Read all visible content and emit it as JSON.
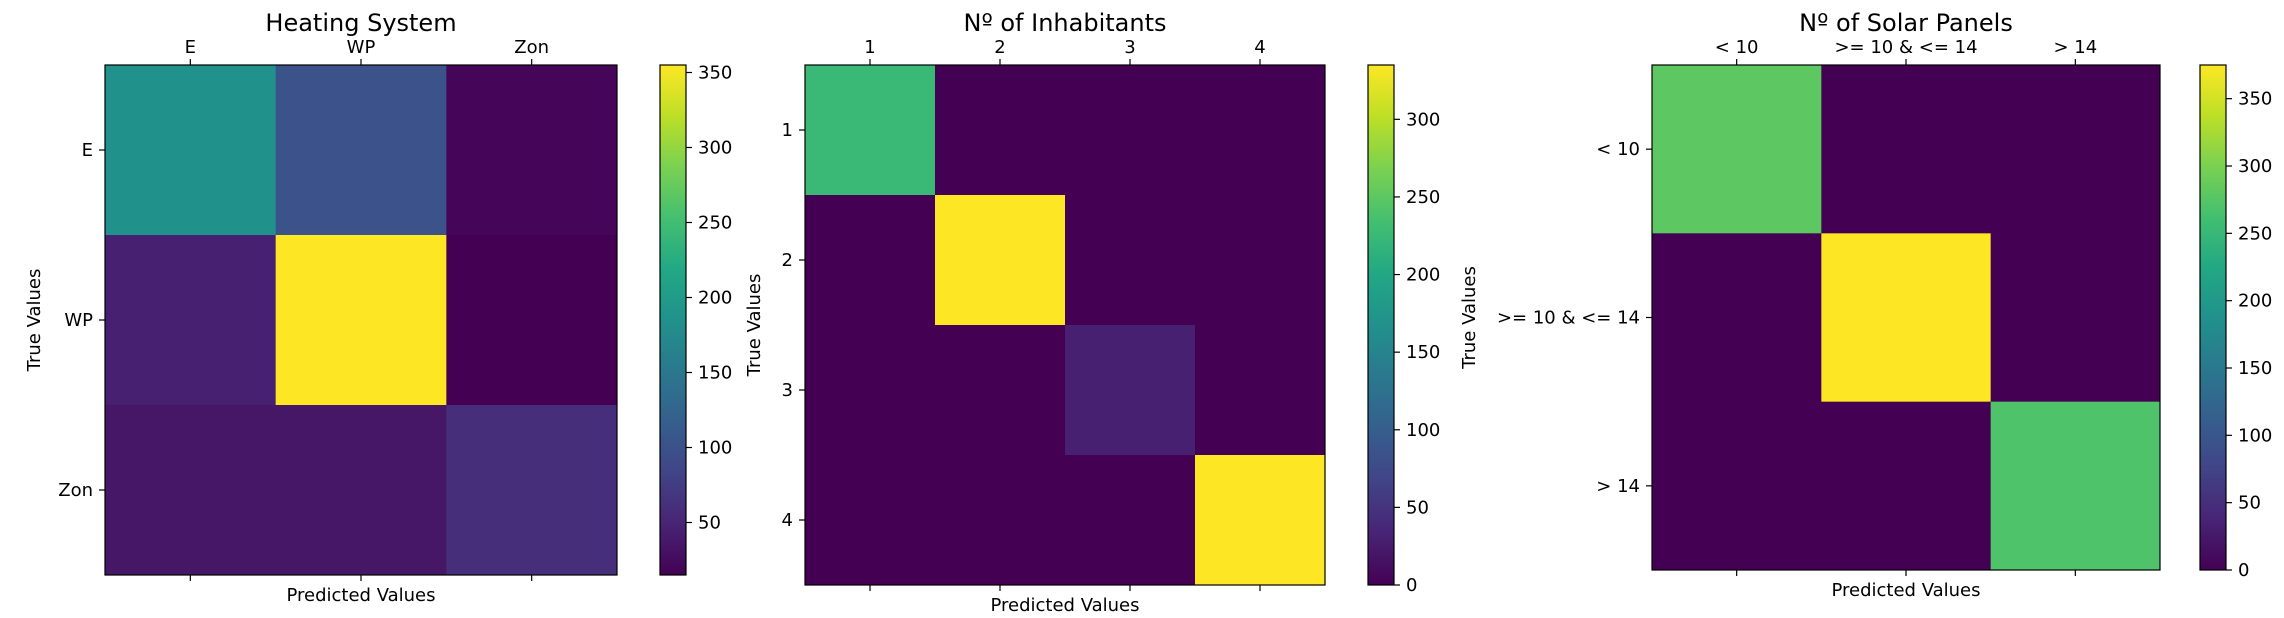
{
  "chart_data": [
    {
      "type": "heatmap",
      "title": "Heating System",
      "xlabel": "Predicted Values",
      "ylabel": "True Values",
      "x_categories": [
        "E",
        "WP",
        "Zon"
      ],
      "y_categories": [
        "E",
        "WP",
        "Zon"
      ],
      "values": [
        [
          185,
          100,
          20
        ],
        [
          45,
          355,
          15
        ],
        [
          35,
          35,
          60
        ]
      ],
      "colorbar": {
        "min": 15,
        "max": 355,
        "ticks": [
          50,
          100,
          150,
          200,
          250,
          300,
          350
        ]
      },
      "colormap": "viridis"
    },
    {
      "type": "heatmap",
      "title": "Nº of Inhabitants",
      "xlabel": "Predicted Values",
      "ylabel": "True Values",
      "x_categories": [
        "1",
        "2",
        "3",
        "4"
      ],
      "y_categories": [
        "1",
        "2",
        "3",
        "4"
      ],
      "values": [
        [
          225,
          0,
          0,
          0
        ],
        [
          0,
          335,
          0,
          0
        ],
        [
          0,
          0,
          30,
          0
        ],
        [
          0,
          0,
          0,
          335
        ]
      ],
      "colorbar": {
        "min": 0,
        "max": 335,
        "ticks": [
          0,
          50,
          100,
          150,
          200,
          250,
          300
        ]
      },
      "colormap": "viridis"
    },
    {
      "type": "heatmap",
      "title": "Nº of Solar Panels",
      "xlabel": "Predicted Values",
      "ylabel": "True Values",
      "x_categories": [
        "< 10",
        ">= 10 & <= 14",
        "> 14"
      ],
      "y_categories": [
        "< 10",
        ">= 10 & <= 14",
        "> 14"
      ],
      "values": [
        [
          280,
          0,
          0
        ],
        [
          0,
          375,
          0
        ],
        [
          0,
          0,
          270
        ]
      ],
      "colorbar": {
        "min": 0,
        "max": 375,
        "ticks": [
          0,
          50,
          100,
          150,
          200,
          250,
          300,
          350
        ]
      },
      "colormap": "viridis"
    }
  ]
}
